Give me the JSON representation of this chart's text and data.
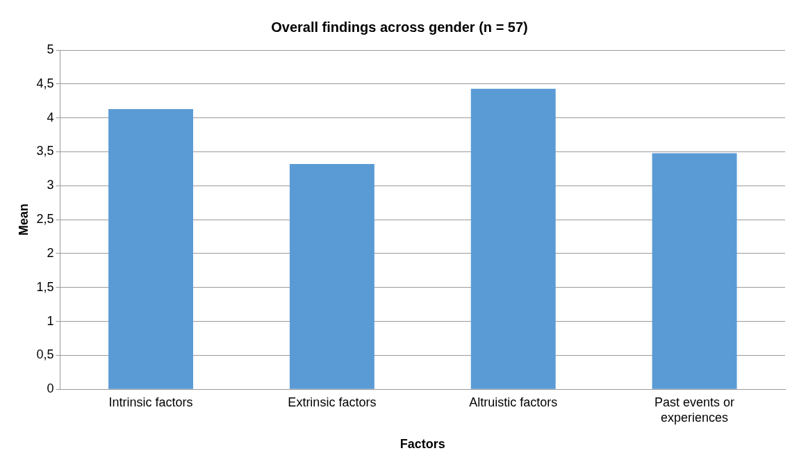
{
  "chart_data": {
    "type": "bar",
    "title": "Overall findings across gender (n = 57)",
    "xlabel": "Factors",
    "ylabel": "Mean",
    "categories": [
      "Intrinsic factors",
      "Extrinsic factors",
      "Altruistic factors",
      "Past events or experiences"
    ],
    "values": [
      4.13,
      3.32,
      4.43,
      3.48
    ],
    "color": "#5b9bd5",
    "ylim": [
      0,
      5
    ],
    "yticks": [
      0,
      {
        "value": 0.5,
        "label": "0,5"
      },
      1,
      {
        "value": 1.5,
        "label": "1,5"
      },
      2,
      {
        "value": 2.5,
        "label": "2,5"
      },
      3,
      {
        "value": 3.5,
        "label": "3,5"
      },
      4,
      {
        "value": 4.5,
        "label": "4,5"
      },
      5
    ],
    "grid": "y",
    "legend": false
  }
}
